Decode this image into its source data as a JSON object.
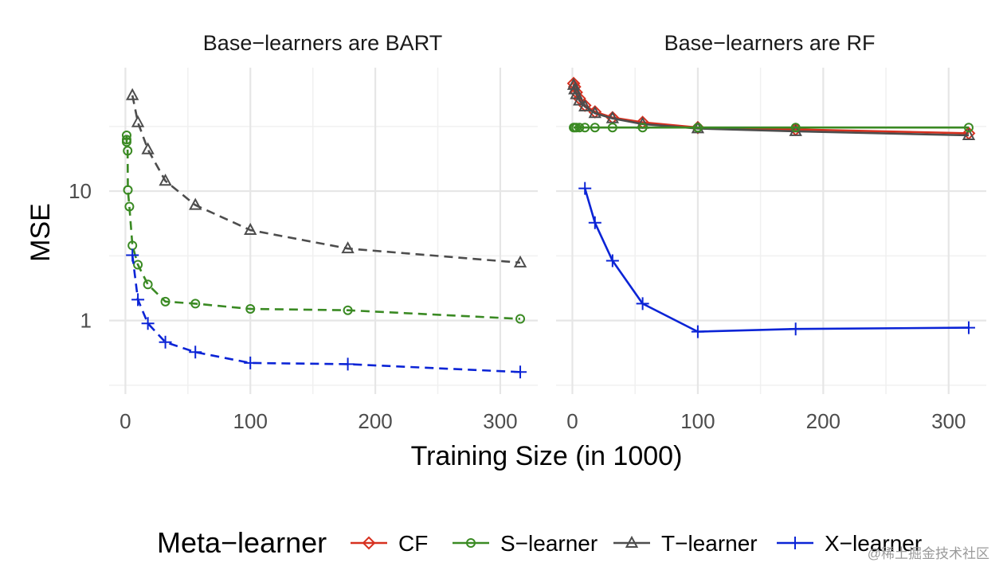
{
  "chart_data": {
    "type": "line",
    "xlabel": "Training Size (in 1000)",
    "ylabel": "MSE",
    "y_scale": "log10",
    "ylim": [
      0.27,
      90
    ],
    "y_ticks": [
      1,
      10
    ],
    "y_tick_labels": [
      "1",
      "10"
    ],
    "x_ticks": [
      0,
      100,
      200,
      300
    ],
    "x_tick_labels": [
      "0",
      "100",
      "200",
      "300"
    ],
    "grid": true,
    "legend": {
      "title": "Meta−learner",
      "position": "bottom",
      "items": [
        {
          "name": "CF",
          "color": "#d7301f",
          "marker": "diamond",
          "dash": false
        },
        {
          "name": "S−learner",
          "color": "#3a8a23",
          "marker": "circle",
          "dash": false
        },
        {
          "name": "T−learner",
          "color": "#4d4d4d",
          "marker": "triangle",
          "dash": false
        },
        {
          "name": "X−learner",
          "color": "#0b24d6",
          "marker": "plus",
          "dash": false
        }
      ]
    },
    "panels": [
      {
        "title": "Base−learners are BART",
        "xlim": [
          -13,
          330
        ],
        "dashed": true,
        "series": [
          {
            "name": "S−learner",
            "x": [
              1,
              1,
              1,
              1.8,
              2,
              3.2,
              5.6,
              10,
              18,
              32,
              56,
              100,
              178,
              316
            ],
            "y": [
              27,
              25,
              24,
              20.5,
              10.2,
              7.6,
              3.8,
              2.7,
              1.9,
              1.4,
              1.35,
              1.23,
              1.2,
              1.03
            ]
          },
          {
            "name": "T−learner",
            "x": [
              5.6,
              10,
              18,
              32,
              56,
              100,
              178,
              316
            ],
            "y": [
              55,
              34,
              21,
              12,
              7.8,
              5.0,
              3.6,
              2.8
            ]
          },
          {
            "name": "X−learner",
            "x": [
              5.6,
              10,
              18,
              32,
              56,
              100,
              178,
              316
            ],
            "y": [
              3.2,
              1.45,
              0.95,
              0.68,
              0.57,
              0.47,
              0.46,
              0.4
            ]
          }
        ]
      },
      {
        "title": "Base−learners are RF",
        "xlim": [
          -13,
          330
        ],
        "dashed": false,
        "series": [
          {
            "name": "CF",
            "x": [
              1,
              1.8,
              3.2,
              5.6,
              10,
              18,
              32,
              56,
              100,
              178,
              316
            ],
            "y": [
              68,
              64,
              58,
              52,
              46,
              41,
              37,
              34,
              31,
              30,
              28
            ]
          },
          {
            "name": "T−learner",
            "x": [
              1,
              1.8,
              3.2,
              5.6,
              10,
              18,
              32,
              56,
              100,
              178,
              316
            ],
            "y": [
              66,
              61,
              56,
              50,
              45,
              40,
              36.5,
              33,
              30.5,
              29,
              27
            ]
          },
          {
            "name": "S−learner",
            "x": [
              1,
              1.8,
              3.2,
              5.6,
              10,
              18,
              32,
              56,
              100,
              178,
              316
            ],
            "y": [
              31,
              31,
              31,
              31,
              31,
              31,
              31,
              31,
              31,
              31,
              31
            ]
          },
          {
            "name": "X−learner",
            "x": [
              10,
              18,
              32,
              56,
              100,
              178,
              316
            ],
            "y": [
              10.5,
              5.7,
              2.9,
              1.35,
              0.82,
              0.86,
              0.88
            ]
          }
        ]
      }
    ]
  },
  "watermark": "@稀土掘金技术社区"
}
